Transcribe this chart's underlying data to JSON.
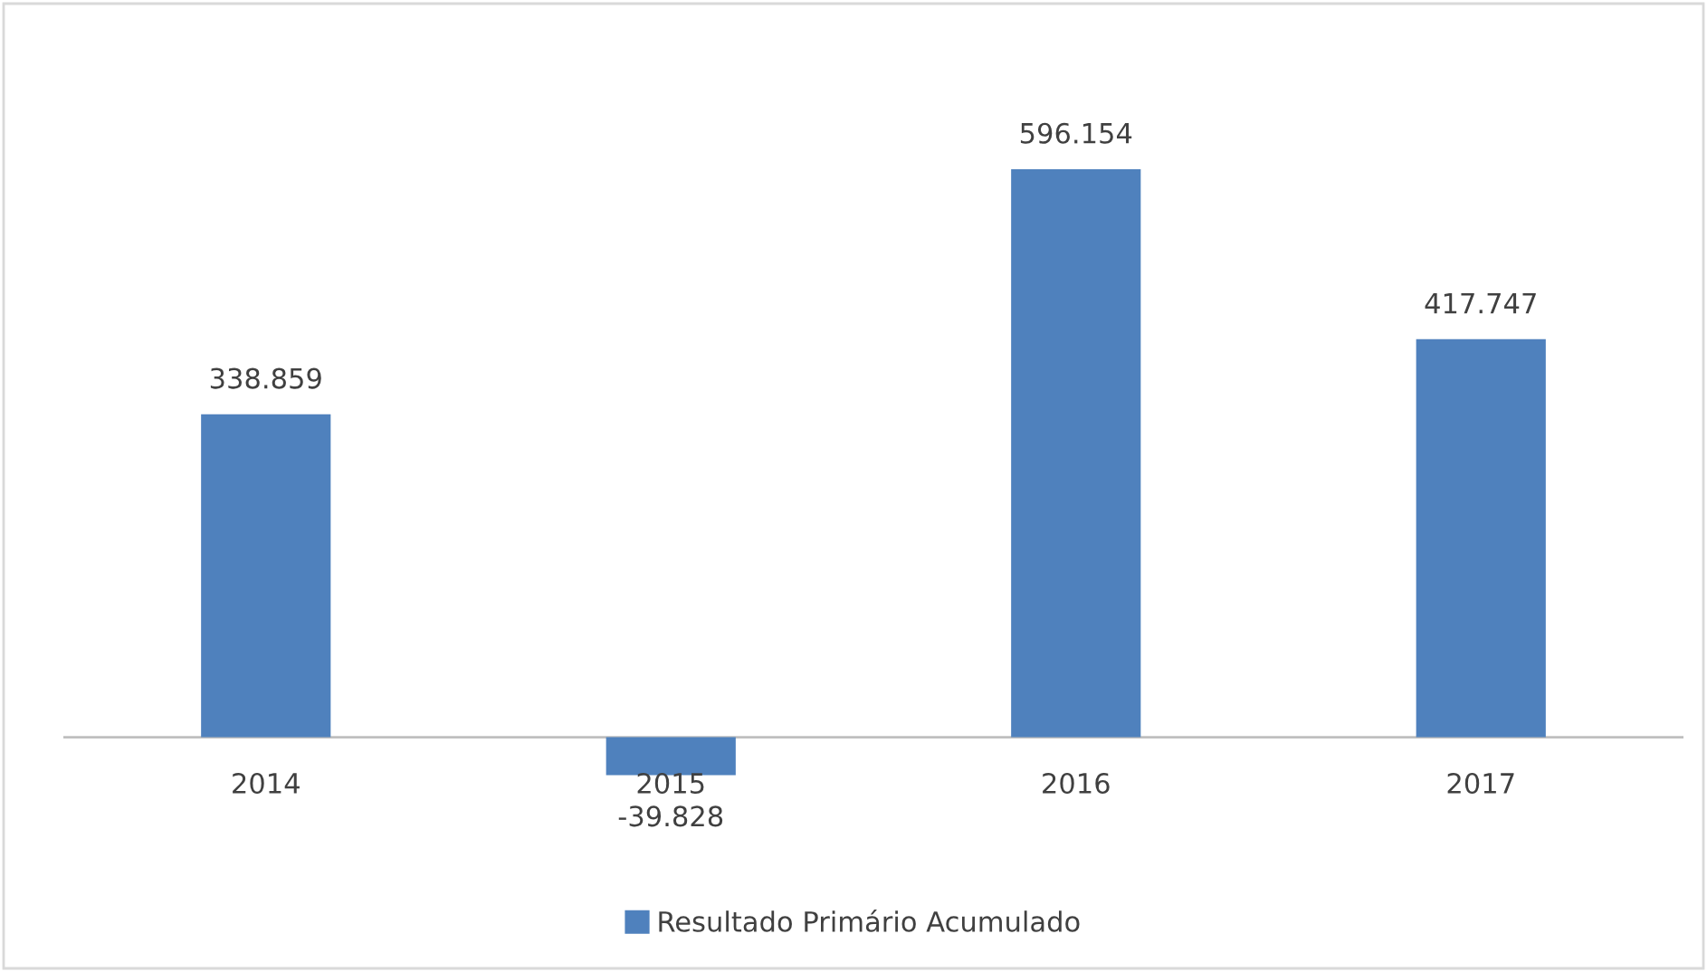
{
  "chart_data": {
    "type": "bar",
    "categories": [
      "2014",
      "2015",
      "2016",
      "2017"
    ],
    "series": [
      {
        "name": "Resultado Primário Acumulado",
        "color": "#4f81bd",
        "values": [
          338859,
          -39828,
          596154,
          417747
        ],
        "value_labels": [
          "338.859",
          "-39.828",
          "596.154",
          "417.747"
        ]
      }
    ],
    "legend": "bottom",
    "grid": false
  }
}
